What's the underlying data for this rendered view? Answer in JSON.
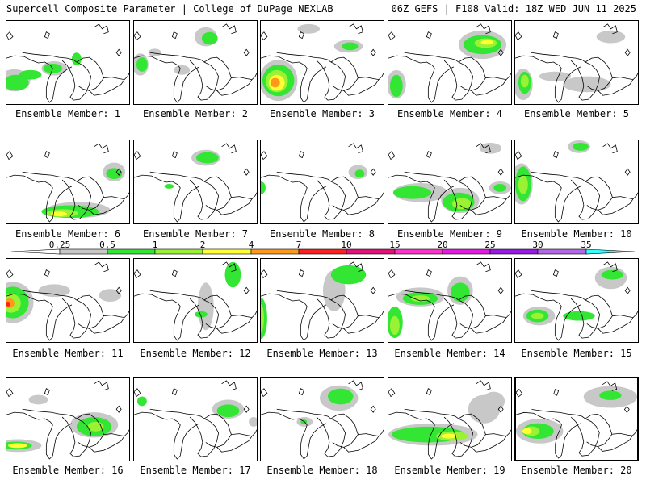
{
  "header": {
    "left": "Supercell Composite Parameter | College of DuPage NEXLAB",
    "right": "06Z GEFS | F108 Valid: 18Z WED JUN 11 2025"
  },
  "members": [
    {
      "label": "Ensemble Member: 1"
    },
    {
      "label": "Ensemble Member: 2"
    },
    {
      "label": "Ensemble Member: 3"
    },
    {
      "label": "Ensemble Member: 4"
    },
    {
      "label": "Ensemble Member: 5"
    },
    {
      "label": "Ensemble Member: 6"
    },
    {
      "label": "Ensemble Member: 7"
    },
    {
      "label": "Ensemble Member: 8"
    },
    {
      "label": "Ensemble Member: 9"
    },
    {
      "label": "Ensemble Member: 10"
    },
    {
      "label": "Ensemble Member: 11"
    },
    {
      "label": "Ensemble Member: 12"
    },
    {
      "label": "Ensemble Member: 13"
    },
    {
      "label": "Ensemble Member: 14"
    },
    {
      "label": "Ensemble Member: 15"
    },
    {
      "label": "Ensemble Member: 16"
    },
    {
      "label": "Ensemble Member: 17"
    },
    {
      "label": "Ensemble Member: 18"
    },
    {
      "label": "Ensemble Member: 19"
    },
    {
      "label": "Ensemble Member: 20",
      "selected": true
    }
  ],
  "colorbar": {
    "ticks": [
      "0.25",
      "0.5",
      "1",
      "2",
      "4",
      "7",
      "10",
      "15",
      "20",
      "25",
      "30",
      "35"
    ],
    "colors": [
      "#c8c8c8",
      "#33e633",
      "#99f233",
      "#ffff33",
      "#ff9919",
      "#ff2020",
      "#e6107a",
      "#ff33cc",
      "#e619e6",
      "#9919e6",
      "#b366e6",
      "#33ffff"
    ]
  }
}
